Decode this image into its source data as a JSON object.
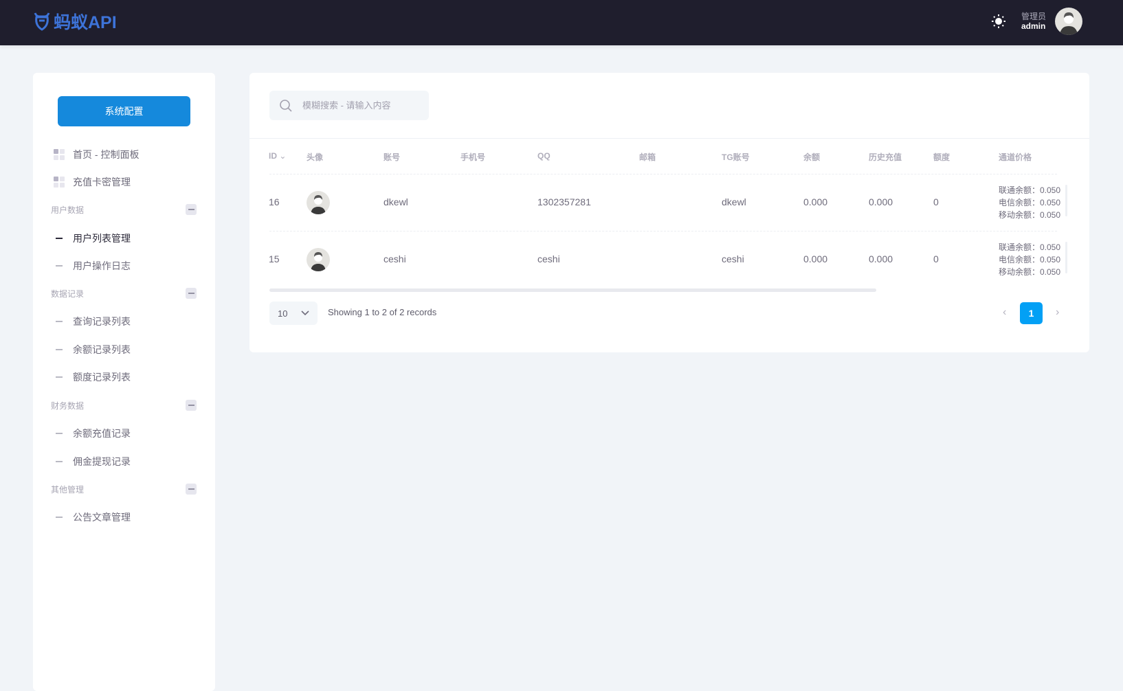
{
  "header": {
    "logo_text": "蚂蚁API",
    "role": "管理员",
    "username": "admin",
    "theme_icon": "sun-icon"
  },
  "sidebar": {
    "config_button": "系统配置",
    "top_items": [
      {
        "label": "首页 - 控制面板"
      },
      {
        "label": "充值卡密管理"
      }
    ],
    "groups": [
      {
        "title": "用户数据",
        "items": [
          {
            "label": "用户列表管理",
            "active": true
          },
          {
            "label": "用户操作日志"
          }
        ]
      },
      {
        "title": "数据记录",
        "items": [
          {
            "label": "查询记录列表"
          },
          {
            "label": "余额记录列表"
          },
          {
            "label": "额度记录列表"
          }
        ]
      },
      {
        "title": "财务数据",
        "items": [
          {
            "label": "余额充值记录"
          },
          {
            "label": "佣金提现记录"
          }
        ]
      },
      {
        "title": "其他管理",
        "items": [
          {
            "label": "公告文章管理"
          }
        ]
      }
    ]
  },
  "main": {
    "search_placeholder": "模糊搜索 - 请输入内容",
    "columns": [
      "ID",
      "头像",
      "账号",
      "手机号",
      "QQ",
      "邮箱",
      "TG账号",
      "余额",
      "历史充值",
      "额度",
      "通道价格"
    ],
    "rows": [
      {
        "id": "16",
        "account": "dkewl",
        "phone": "",
        "qq": "1302357281",
        "email": "",
        "tg": "dkewl",
        "balance": "0.000",
        "history": "0.000",
        "quota": "0",
        "prices": [
          "联通余额：0.050",
          "电信余额：0.050",
          "移动余额：0.050"
        ]
      },
      {
        "id": "15",
        "account": "ceshi",
        "phone": "",
        "qq": "ceshi",
        "email": "",
        "tg": "ceshi",
        "balance": "0.000",
        "history": "0.000",
        "quota": "0",
        "prices": [
          "联通余额：0.050",
          "电信余额：0.050",
          "移动余额：0.050"
        ]
      }
    ],
    "page_size": "10",
    "showing": "Showing 1 to 2 of 2 records",
    "current_page": "1",
    "accent": "#03a0f5"
  }
}
